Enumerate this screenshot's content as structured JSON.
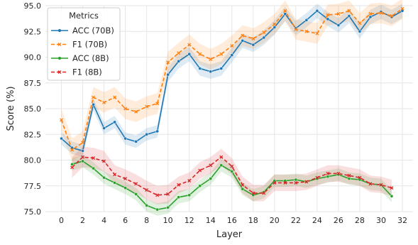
{
  "chart_data": {
    "type": "line",
    "title": "",
    "xlabel": "Layer",
    "ylabel": "Score (%)",
    "xlim": [
      -1.5,
      33
    ],
    "ylim": [
      75.0,
      95.0
    ],
    "xticks": [
      0,
      2,
      4,
      6,
      8,
      10,
      12,
      14,
      16,
      18,
      20,
      22,
      24,
      26,
      28,
      30,
      32
    ],
    "yticks": [
      75.0,
      77.5,
      80.0,
      82.5,
      85.0,
      87.5,
      90.0,
      92.5,
      95.0
    ],
    "grid": true,
    "legend": {
      "title": "Metrics",
      "position": "top-left"
    },
    "series": [
      {
        "name": "ACC (70B)",
        "color": "#1f77b4",
        "linestyle": "solid",
        "marker": "circle",
        "x": [
          0,
          1,
          2,
          3,
          4,
          5,
          6,
          7,
          8,
          9,
          10,
          11,
          12,
          13,
          14,
          15,
          16,
          17,
          18,
          19,
          20,
          21,
          22,
          23,
          24,
          25,
          26,
          27,
          28,
          29,
          30,
          31,
          32
        ],
        "y": [
          82.1,
          81.2,
          80.9,
          85.4,
          83.1,
          83.7,
          82.1,
          81.8,
          82.5,
          82.8,
          88.3,
          89.6,
          90.3,
          88.9,
          88.6,
          88.9,
          90.2,
          91.6,
          91.2,
          91.9,
          92.9,
          94.2,
          92.8,
          93.6,
          94.5,
          93.7,
          93.1,
          94.0,
          92.5,
          93.9,
          94.4,
          93.9,
          94.5
        ],
        "band": [
          0.6,
          0.6,
          0.6,
          0.6,
          0.6,
          0.6,
          0.6,
          0.6,
          0.6,
          0.6,
          0.7,
          0.7,
          0.7,
          0.7,
          0.7,
          0.7,
          0.7,
          0.7,
          0.7,
          0.7,
          0.7,
          0.7,
          0.7,
          0.7,
          0.7,
          0.7,
          0.7,
          0.7,
          0.7,
          0.7,
          0.7,
          0.7,
          0.7
        ]
      },
      {
        "name": "F1 (70B)",
        "color": "#ff7f0e",
        "linestyle": "dashed",
        "marker": "x",
        "x": [
          0,
          1,
          2,
          3,
          4,
          5,
          6,
          7,
          8,
          9,
          10,
          11,
          12,
          13,
          14,
          15,
          16,
          17,
          18,
          19,
          20,
          21,
          22,
          23,
          24,
          25,
          26,
          27,
          28,
          29,
          30,
          31,
          32
        ],
        "y": [
          83.9,
          81.0,
          81.7,
          86.1,
          85.6,
          86.1,
          85.0,
          84.7,
          85.2,
          85.5,
          89.5,
          90.4,
          91.2,
          90.3,
          89.8,
          90.3,
          91.1,
          92.1,
          91.8,
          92.4,
          93.2,
          94.5,
          92.7,
          92.5,
          92.3,
          94.1,
          94.2,
          94.5,
          93.3,
          94.2,
          94.3,
          94.0,
          94.7
        ],
        "band": [
          1.1,
          1.1,
          1.1,
          1.0,
          1.0,
          1.0,
          1.0,
          1.0,
          1.0,
          1.0,
          1.0,
          1.0,
          1.0,
          1.0,
          1.0,
          1.0,
          1.0,
          1.0,
          1.0,
          1.0,
          1.0,
          1.0,
          1.0,
          1.0,
          1.0,
          1.0,
          1.0,
          1.0,
          1.0,
          1.0,
          1.0,
          1.0,
          1.0
        ]
      },
      {
        "name": "ACC (8B)",
        "color": "#2ca02c",
        "linestyle": "solid",
        "marker": "circle",
        "x": [
          1,
          2,
          3,
          4,
          5,
          6,
          7,
          8,
          9,
          10,
          11,
          12,
          13,
          14,
          15,
          16,
          17,
          18,
          19,
          20,
          21,
          22,
          23,
          24,
          25,
          26,
          27,
          28,
          29,
          30,
          31
        ],
        "y": [
          79.6,
          79.9,
          79.2,
          78.3,
          77.8,
          77.3,
          76.7,
          75.6,
          75.2,
          75.4,
          76.4,
          76.6,
          77.5,
          78.2,
          79.5,
          78.9,
          77.2,
          76.6,
          76.9,
          78.0,
          78.0,
          78.1,
          77.9,
          78.2,
          78.4,
          78.6,
          78.2,
          78.1,
          77.7,
          77.6,
          76.5
        ],
        "band": [
          0.6,
          0.6,
          0.6,
          0.6,
          0.6,
          0.6,
          0.6,
          0.6,
          0.6,
          0.6,
          0.6,
          0.6,
          0.6,
          0.6,
          0.6,
          0.6,
          0.6,
          0.6,
          0.6,
          0.6,
          0.6,
          0.6,
          0.6,
          0.6,
          0.6,
          0.6,
          0.6,
          0.6,
          0.6,
          0.6,
          0.6
        ]
      },
      {
        "name": "F1 (8B)",
        "color": "#d62728",
        "linestyle": "dashed",
        "marker": "x",
        "x": [
          1,
          2,
          3,
          4,
          5,
          6,
          7,
          8,
          9,
          10,
          11,
          12,
          13,
          14,
          15,
          16,
          17,
          18,
          19,
          20,
          21,
          22,
          23,
          24,
          25,
          26,
          27,
          28,
          29,
          30,
          31
        ],
        "y": [
          79.3,
          80.3,
          80.2,
          79.9,
          78.6,
          78.2,
          77.7,
          77.1,
          76.6,
          76.7,
          77.6,
          78.0,
          79.0,
          79.5,
          80.3,
          79.4,
          77.6,
          76.8,
          76.8,
          77.8,
          77.8,
          77.8,
          77.9,
          78.3,
          78.7,
          78.7,
          78.5,
          78.3,
          77.7,
          77.6,
          77.3
        ],
        "band": [
          1.0,
          1.0,
          1.0,
          1.0,
          0.9,
          0.9,
          0.9,
          0.9,
          0.9,
          0.9,
          0.8,
          0.8,
          0.8,
          0.8,
          0.8,
          0.8,
          0.8,
          0.8,
          0.8,
          0.8,
          0.8,
          0.8,
          0.8,
          0.8,
          0.8,
          0.8,
          0.8,
          0.8,
          0.8,
          0.8,
          0.8
        ]
      }
    ]
  }
}
